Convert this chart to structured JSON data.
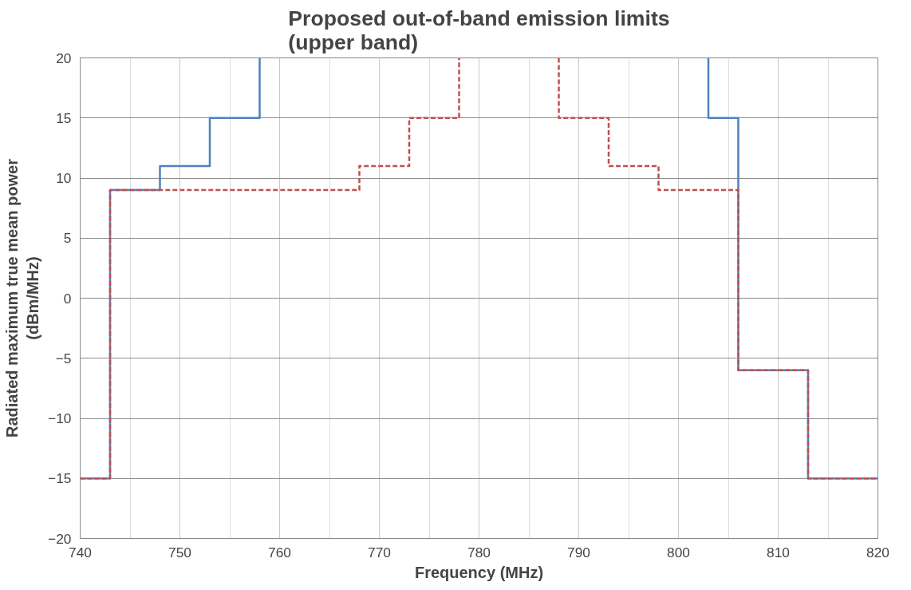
{
  "chart_data": {
    "type": "line",
    "title": "Proposed out-of-band emission limits\n(upper band)",
    "xlabel": "Frequency (MHz)",
    "ylabel": "Radiated maximum true mean power\n(dBm/MHz)",
    "xlim": [
      740,
      820
    ],
    "xticks": [
      740,
      750,
      760,
      770,
      780,
      790,
      800,
      810,
      820
    ],
    "ylim": [
      -20,
      20
    ],
    "yticks": [
      -20,
      -15,
      -10,
      -5,
      0,
      5,
      10,
      15,
      20
    ],
    "grid": true,
    "marker": "none",
    "series": [
      {
        "color": "#4f81bd",
        "line_style": "solid",
        "x": [
          740,
          743,
          743,
          748,
          748,
          753,
          753,
          758,
          758,
          780,
          803,
          803,
          806,
          806,
          813,
          813,
          820
        ],
        "values": [
          -15,
          -15,
          9,
          9,
          11,
          11,
          15,
          15,
          20,
          null,
          20,
          15,
          15,
          -6,
          -6,
          -15,
          -15
        ]
      },
      {
        "color": "#c0504d",
        "line_style": "dashed",
        "x": [
          740,
          743,
          743,
          768,
          768,
          773,
          773,
          778,
          778,
          783,
          788,
          788,
          793,
          793,
          798,
          798,
          806,
          806,
          813,
          813,
          820
        ],
        "values": [
          -15,
          -15,
          9,
          9,
          11,
          11,
          15,
          15,
          20,
          null,
          20,
          15,
          15,
          11,
          11,
          9,
          9,
          -6,
          -6,
          -15,
          -15
        ]
      }
    ]
  }
}
